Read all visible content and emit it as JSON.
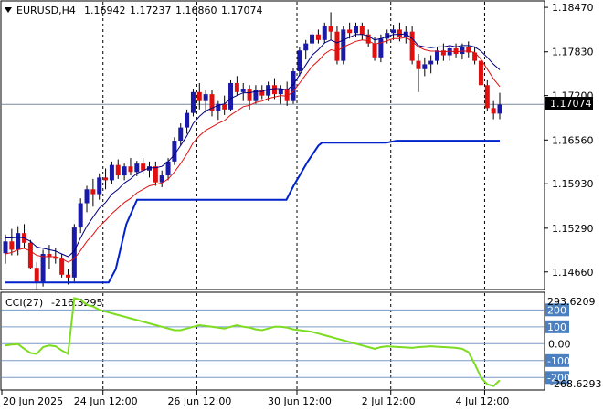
{
  "header": {
    "symbol_label": "EURUSD,H4",
    "open": "1.16942",
    "high": "1.17237",
    "low": "1.16860",
    "close": "1.17074"
  },
  "cci": {
    "label": "CCI(27)",
    "value": "-216.3295",
    "scale_max": "293.6209",
    "scale_min": "-268.6293",
    "levels": [
      "200",
      "100",
      "0.00",
      "-100",
      "-200"
    ]
  },
  "price_axis": {
    "ticks": [
      "1.18470",
      "1.17830",
      "1.17200",
      "1.16560",
      "1.15930",
      "1.15290",
      "1.14660"
    ],
    "current_price": "1.17074"
  },
  "time_axis": {
    "labels": [
      "20 Jun 2025",
      "24 Jun 12:00",
      "26 Jun 12:00",
      "30 Jun 12:00",
      "2 Jul 12:00",
      "4 Jul 12:00"
    ]
  },
  "colors": {
    "bull_candle": "#1a1aa8",
    "bear_candle": "#e01010",
    "fast_ma": "#e01010",
    "slow_ma": "#000080",
    "stop_line": "#0022cc",
    "cci_line": "#7ddc20",
    "level_bg": "#4a7fc0",
    "current_price_bg": "#000000"
  },
  "chart_data": {
    "type": "candlestick",
    "symbol": "EURUSD",
    "timeframe": "H4",
    "price_range": [
      1.1442,
      1.1855
    ],
    "cci_range": [
      -268.6293,
      293.6209
    ],
    "candles": [
      [
        1.1493,
        1.152,
        1.1478,
        1.151
      ],
      [
        1.151,
        1.1528,
        1.149,
        1.1498
      ],
      [
        1.1498,
        1.1532,
        1.149,
        1.1522
      ],
      [
        1.1522,
        1.1535,
        1.15,
        1.1508
      ],
      [
        1.1508,
        1.1512,
        1.147,
        1.1472
      ],
      [
        1.1472,
        1.148,
        1.144,
        1.1452
      ],
      [
        1.1452,
        1.1498,
        1.1445,
        1.1492
      ],
      [
        1.1492,
        1.1505,
        1.147,
        1.1488
      ],
      [
        1.1488,
        1.15,
        1.1478,
        1.1485
      ],
      [
        1.1485,
        1.1492,
        1.1458,
        1.1462
      ],
      [
        1.1462,
        1.147,
        1.1448,
        1.1458
      ],
      [
        1.1458,
        1.1535,
        1.1452,
        1.153
      ],
      [
        1.153,
        1.1572,
        1.1522,
        1.1565
      ],
      [
        1.1565,
        1.159,
        1.1552,
        1.1585
      ],
      [
        1.1585,
        1.16,
        1.156,
        1.1578
      ],
      [
        1.1578,
        1.1608,
        1.157,
        1.1602
      ],
      [
        1.1602,
        1.1615,
        1.1585,
        1.1598
      ],
      [
        1.1598,
        1.1625,
        1.1592,
        1.162
      ],
      [
        1.162,
        1.1628,
        1.16,
        1.1605
      ],
      [
        1.1605,
        1.1622,
        1.1598,
        1.1618
      ],
      [
        1.1618,
        1.163,
        1.1605,
        1.161
      ],
      [
        1.161,
        1.1626,
        1.1604,
        1.1622
      ],
      [
        1.1622,
        1.163,
        1.1608,
        1.1612
      ],
      [
        1.1612,
        1.1625,
        1.1602,
        1.1618
      ],
      [
        1.1618,
        1.1625,
        1.159,
        1.1595
      ],
      [
        1.1595,
        1.1612,
        1.1588,
        1.1605
      ],
      [
        1.1605,
        1.163,
        1.1598,
        1.1625
      ],
      [
        1.1625,
        1.166,
        1.162,
        1.1655
      ],
      [
        1.1655,
        1.168,
        1.1648,
        1.1674
      ],
      [
        1.1674,
        1.17,
        1.1665,
        1.1695
      ],
      [
        1.1695,
        1.173,
        1.169,
        1.1725
      ],
      [
        1.1725,
        1.1738,
        1.17,
        1.1712
      ],
      [
        1.1712,
        1.1728,
        1.1695,
        1.1722
      ],
      [
        1.1722,
        1.1728,
        1.169,
        1.1698
      ],
      [
        1.1698,
        1.1712,
        1.1685,
        1.1708
      ],
      [
        1.1708,
        1.172,
        1.1692,
        1.17
      ],
      [
        1.17,
        1.1742,
        1.1698,
        1.1738
      ],
      [
        1.1738,
        1.1748,
        1.172,
        1.1725
      ],
      [
        1.1725,
        1.1738,
        1.1712,
        1.173
      ],
      [
        1.173,
        1.1735,
        1.17,
        1.1712
      ],
      [
        1.1712,
        1.1735,
        1.1708,
        1.1728
      ],
      [
        1.1728,
        1.1735,
        1.1715,
        1.172
      ],
      [
        1.172,
        1.174,
        1.1712,
        1.1735
      ],
      [
        1.1735,
        1.1745,
        1.1715,
        1.1722
      ],
      [
        1.1722,
        1.1735,
        1.1708,
        1.173
      ],
      [
        1.173,
        1.174,
        1.1705,
        1.1712
      ],
      [
        1.1712,
        1.176,
        1.1708,
        1.1755
      ],
      [
        1.1755,
        1.179,
        1.1748,
        1.1785
      ],
      [
        1.1785,
        1.18,
        1.1772,
        1.1795
      ],
      [
        1.1795,
        1.1812,
        1.178,
        1.1808
      ],
      [
        1.1808,
        1.1815,
        1.1795,
        1.18
      ],
      [
        1.18,
        1.1825,
        1.1795,
        1.182
      ],
      [
        1.182,
        1.184,
        1.18,
        1.1812
      ],
      [
        1.1812,
        1.182,
        1.1765,
        1.177
      ],
      [
        1.177,
        1.182,
        1.1765,
        1.1815
      ],
      [
        1.1815,
        1.1825,
        1.1802,
        1.181
      ],
      [
        1.181,
        1.1825,
        1.1805,
        1.182
      ],
      [
        1.182,
        1.1825,
        1.18,
        1.1808
      ],
      [
        1.1808,
        1.1815,
        1.179,
        1.1795
      ],
      [
        1.1795,
        1.1805,
        1.177,
        1.1775
      ],
      [
        1.1775,
        1.1808,
        1.1768,
        1.1802
      ],
      [
        1.1802,
        1.1815,
        1.1795,
        1.181
      ],
      [
        1.181,
        1.1822,
        1.18,
        1.1815
      ],
      [
        1.1815,
        1.1825,
        1.1798,
        1.1805
      ],
      [
        1.1805,
        1.182,
        1.1795,
        1.1812
      ],
      [
        1.1812,
        1.182,
        1.1765,
        1.177
      ],
      [
        1.177,
        1.178,
        1.1725,
        1.1758
      ],
      [
        1.1758,
        1.1775,
        1.1748,
        1.1765
      ],
      [
        1.1765,
        1.1778,
        1.1752,
        1.177
      ],
      [
        1.177,
        1.179,
        1.1765,
        1.1785
      ],
      [
        1.1785,
        1.1795,
        1.177,
        1.1778
      ],
      [
        1.1778,
        1.1792,
        1.177,
        1.1788
      ],
      [
        1.1788,
        1.1795,
        1.1775,
        1.178
      ],
      [
        1.178,
        1.1795,
        1.1772,
        1.179
      ],
      [
        1.179,
        1.1798,
        1.1775,
        1.1782
      ],
      [
        1.1782,
        1.179,
        1.1765,
        1.177
      ],
      [
        1.177,
        1.1778,
        1.173,
        1.1735
      ],
      [
        1.1735,
        1.1742,
        1.1698,
        1.1702
      ],
      [
        1.1702,
        1.1712,
        1.1686,
        1.1694
      ],
      [
        1.1694,
        1.1724,
        1.1686,
        1.1707
      ]
    ],
    "fast_ma": [
      1.1492,
      1.1494,
      1.1498,
      1.15,
      1.1496,
      1.149,
      1.1488,
      1.1488,
      1.1488,
      1.1485,
      1.148,
      1.1485,
      1.1497,
      1.151,
      1.152,
      1.1532,
      1.154,
      1.155,
      1.1558,
      1.1566,
      1.1572,
      1.158,
      1.1585,
      1.159,
      1.1592,
      1.1594,
      1.16,
      1.161,
      1.1622,
      1.1636,
      1.1652,
      1.1662,
      1.167,
      1.1675,
      1.168,
      1.1684,
      1.1692,
      1.1698,
      1.1704,
      1.1706,
      1.171,
      1.1712,
      1.1716,
      1.1718,
      1.172,
      1.1719,
      1.1726,
      1.1738,
      1.175,
      1.1762,
      1.177,
      1.178,
      1.1786,
      1.1784,
      1.179,
      1.1794,
      1.1798,
      1.18,
      1.1799,
      1.1794,
      1.1796,
      1.1799,
      1.1802,
      1.1802,
      1.1804,
      1.1798,
      1.179,
      1.1786,
      1.1784,
      1.1784,
      1.1783,
      1.1784,
      1.1783,
      1.1784,
      1.1784,
      1.1782,
      1.1772,
      1.1758,
      1.1744,
      1.1733
    ],
    "slow_ma": [
      1.1515,
      1.1515,
      1.1516,
      1.1515,
      1.151,
      1.1502,
      1.15,
      1.1498,
      1.1496,
      1.1492,
      1.1488,
      1.1496,
      1.1515,
      1.1532,
      1.1545,
      1.1558,
      1.1566,
      1.1578,
      1.1585,
      1.1594,
      1.16,
      1.1608,
      1.1612,
      1.1616,
      1.1616,
      1.1618,
      1.1625,
      1.1635,
      1.1648,
      1.1662,
      1.168,
      1.169,
      1.1698,
      1.1702,
      1.1706,
      1.1708,
      1.1716,
      1.172,
      1.1724,
      1.1724,
      1.1726,
      1.1726,
      1.1729,
      1.173,
      1.173,
      1.1728,
      1.1736,
      1.175,
      1.1764,
      1.1778,
      1.1786,
      1.1796,
      1.18,
      1.1796,
      1.18,
      1.1804,
      1.1808,
      1.1808,
      1.1806,
      1.18,
      1.1802,
      1.1805,
      1.1808,
      1.1808,
      1.1809,
      1.1802,
      1.1792,
      1.179,
      1.1789,
      1.179,
      1.179,
      1.1792,
      1.179,
      1.1792,
      1.1792,
      1.179,
      1.1784,
      1.1775,
      1.1765,
      1.1757
    ],
    "stop_line": [
      [
        0,
        1.1451
      ],
      [
        29,
        1.1451
      ],
      [
        31,
        1.147
      ],
      [
        34,
        1.1535
      ],
      [
        37,
        1.157
      ],
      [
        79,
        1.157
      ],
      [
        81,
        1.159
      ],
      [
        85,
        1.1625
      ],
      [
        88,
        1.1648
      ],
      [
        89,
        1.1652
      ],
      [
        107,
        1.1652
      ],
      [
        110,
        1.1655
      ],
      [
        139,
        1.1655
      ]
    ],
    "stop_line_scale": "x0-139-per-candle-index",
    "cci_series": [
      -10,
      -5,
      -2,
      -30,
      -55,
      -60,
      -20,
      -10,
      -15,
      -40,
      -60,
      270,
      260,
      230,
      220,
      200,
      190,
      180,
      170,
      160,
      150,
      140,
      130,
      120,
      110,
      100,
      90,
      80,
      80,
      90,
      100,
      110,
      105,
      100,
      95,
      90,
      100,
      110,
      100,
      95,
      85,
      80,
      90,
      100,
      100,
      95,
      85,
      80,
      75,
      70,
      60,
      50,
      40,
      30,
      20,
      10,
      0,
      -10,
      -20,
      -30,
      -20,
      -15,
      -18,
      -20,
      -22,
      -25,
      -20,
      -18,
      -15,
      -18,
      -20,
      -22,
      -25,
      -30,
      -50,
      -120,
      -200,
      -240,
      -250,
      -216
    ]
  }
}
